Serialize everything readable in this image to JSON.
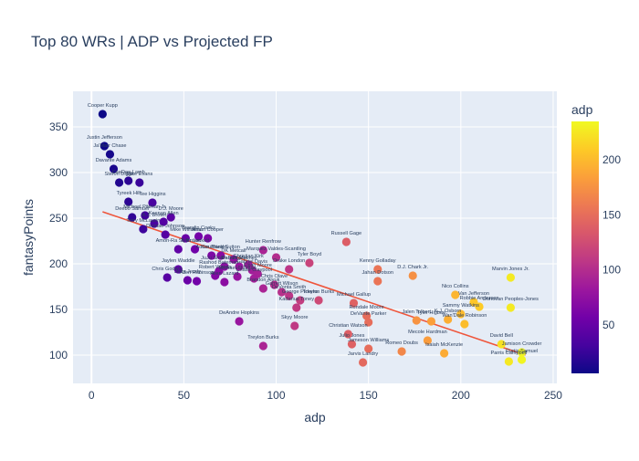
{
  "chart_data": {
    "type": "scatter",
    "title": "Top 80 WRs | ADP vs Projected FP",
    "xlabel": "adp",
    "ylabel": "fantasyPoints",
    "xlim": [
      -10,
      252
    ],
    "ylim": [
      69,
      389
    ],
    "xticks": [
      0,
      50,
      100,
      150,
      200,
      250
    ],
    "yticks": [
      100,
      150,
      200,
      250,
      300,
      350
    ],
    "grid": true,
    "colorbar": {
      "title": "adp",
      "min": 6,
      "max": 235,
      "ticks": [
        50,
        100,
        150,
        200
      ],
      "colorscale": [
        "#0d0887",
        "#46039f",
        "#7201a8",
        "#9c179e",
        "#bd3786",
        "#d8576b",
        "#ed7953",
        "#fb9f3a",
        "#fdca26",
        "#f0f921"
      ]
    },
    "trendline": {
      "color": "#ef553b",
      "x0": 6,
      "y0": 257,
      "x1": 235,
      "y1": 100
    },
    "points": [
      {
        "label": "Cooper Kupp",
        "x": 6,
        "y": 364
      },
      {
        "label": "Justin Jefferson",
        "x": 7,
        "y": 329
      },
      {
        "label": "Ja'Marr Chase",
        "x": 10,
        "y": 320
      },
      {
        "label": "Davante Adams",
        "x": 12,
        "y": 304
      },
      {
        "label": "Stefon Diggs",
        "x": 15,
        "y": 289
      },
      {
        "label": "CeeDee Lamb",
        "x": 20,
        "y": 291
      },
      {
        "label": "Mike Evans",
        "x": 26,
        "y": 289
      },
      {
        "label": "Tyreek Hill",
        "x": 20,
        "y": 268
      },
      {
        "label": "Tee Higgins",
        "x": 33,
        "y": 267
      },
      {
        "label": "Deebo Samuel",
        "x": 22,
        "y": 251
      },
      {
        "label": "Michael Pittman Jr.",
        "x": 29,
        "y": 253
      },
      {
        "label": "D.J. Moore",
        "x": 43,
        "y": 251
      },
      {
        "label": "Keenan Allen",
        "x": 39,
        "y": 246
      },
      {
        "label": "Terry McLaurin",
        "x": 28,
        "y": 238
      },
      {
        "label": "A.J. Brown",
        "x": 34,
        "y": 244
      },
      {
        "label": "Diontae Johnson",
        "x": 40,
        "y": 232
      },
      {
        "label": "Mike Williams",
        "x": 51,
        "y": 228
      },
      {
        "label": "Amari Cooper",
        "x": 63,
        "y": 228
      },
      {
        "label": "Brandin Cooks",
        "x": 58,
        "y": 230
      },
      {
        "label": "Hunter Renfrow",
        "x": 93,
        "y": 215
      },
      {
        "label": "Amon-Ra St. Brown",
        "x": 47,
        "y": 216
      },
      {
        "label": "Tyler Lockett",
        "x": 56,
        "y": 216
      },
      {
        "label": "Courtland Sutton",
        "x": 70,
        "y": 209
      },
      {
        "label": "Adam Thielen",
        "x": 65,
        "y": 209
      },
      {
        "label": "Marquez Valdes-Scantling",
        "x": 100,
        "y": 207
      },
      {
        "label": "DK Metcalf",
        "x": 77,
        "y": 205
      },
      {
        "label": "Tyler Boyd",
        "x": 118,
        "y": 201
      },
      {
        "label": "Christian Kirk",
        "x": 85,
        "y": 199
      },
      {
        "label": "Jaylen Waddle",
        "x": 47,
        "y": 194
      },
      {
        "label": "JuJu Smith-Schuster",
        "x": 72,
        "y": 197
      },
      {
        "label": "Darnell Mooney",
        "x": 80,
        "y": 197
      },
      {
        "label": "Gabriel Davis",
        "x": 87,
        "y": 193
      },
      {
        "label": "Elijah Moore",
        "x": 90,
        "y": 189
      },
      {
        "label": "Drake London",
        "x": 107,
        "y": 194
      },
      {
        "label": "Russell Gage",
        "x": 138,
        "y": 224
      },
      {
        "label": "Kenny Golladay",
        "x": 155,
        "y": 194
      },
      {
        "label": "D.J. Chark Jr.",
        "x": 174,
        "y": 187
      },
      {
        "label": "Jahan Dotson",
        "x": 155,
        "y": 181
      },
      {
        "label": "Chris Godwin",
        "x": 41,
        "y": 185
      },
      {
        "label": "Allen Robinson",
        "x": 57,
        "y": 181
      },
      {
        "label": "Jerry Jeudy",
        "x": 52,
        "y": 182
      },
      {
        "label": "Robert Woods",
        "x": 67,
        "y": 187
      },
      {
        "label": "Rashod Bateman",
        "x": 69,
        "y": 192
      },
      {
        "label": "Michael Thomas",
        "x": 79,
        "y": 186
      },
      {
        "label": "Chase Claypool",
        "x": 88,
        "y": 184
      },
      {
        "label": "Chris Olave",
        "x": 99,
        "y": 177
      },
      {
        "label": "Brandon Aiyuk",
        "x": 93,
        "y": 173
      },
      {
        "label": "Garrett Wilson",
        "x": 103,
        "y": 169
      },
      {
        "label": "DeVonta Smith",
        "x": 107,
        "y": 165
      },
      {
        "label": "George Pickens",
        "x": 113,
        "y": 160
      },
      {
        "label": "Kadarius Toney",
        "x": 111,
        "y": 152
      },
      {
        "label": "Treylon Burks",
        "x": 123,
        "y": 160
      },
      {
        "label": "Michael Gallup",
        "x": 142,
        "y": 157
      },
      {
        "label": "Rondale Moore",
        "x": 149,
        "y": 143
      },
      {
        "label": "DeVante Parker",
        "x": 150,
        "y": 136
      },
      {
        "label": "Jalen Tolbert",
        "x": 176,
        "y": 138
      },
      {
        "label": "Nico Collins",
        "x": 197,
        "y": 166
      },
      {
        "label": "Van Jefferson",
        "x": 207,
        "y": 158
      },
      {
        "label": "Robbie Anderson",
        "x": 210,
        "y": 153
      },
      {
        "label": "Donovan Peoples-Jones",
        "x": 227,
        "y": 152
      },
      {
        "label": "Marvin Jones Jr.",
        "x": 227,
        "y": 185
      },
      {
        "label": "Sammy Watkins",
        "x": 200,
        "y": 145
      },
      {
        "label": "Tyler Higbee",
        "x": 184,
        "y": 137
      },
      {
        "label": "K.J. Osborn",
        "x": 193,
        "y": 139
      },
      {
        "label": "Wan'Dale Robinson",
        "x": 202,
        "y": 134
      },
      {
        "label": "DeAndre Hopkins",
        "x": 80,
        "y": 137
      },
      {
        "label": "Skyy Moore",
        "x": 110,
        "y": 132
      },
      {
        "label": "Christian Watson",
        "x": 139,
        "y": 123
      },
      {
        "label": "Treylon Burks",
        "x": 93,
        "y": 110
      },
      {
        "label": "Julio Jones",
        "x": 141,
        "y": 112
      },
      {
        "label": "Jameson Williams",
        "x": 150,
        "y": 107
      },
      {
        "label": "Mecole Hardman",
        "x": 182,
        "y": 116
      },
      {
        "label": "Romeo Doubs",
        "x": 168,
        "y": 104
      },
      {
        "label": "Isaiah McKenzie",
        "x": 191,
        "y": 102
      },
      {
        "label": "Jarvis Landry",
        "x": 147,
        "y": 92
      },
      {
        "label": "David Bell",
        "x": 222,
        "y": 112
      },
      {
        "label": "Jamison Crowder",
        "x": 233,
        "y": 103
      },
      {
        "label": "Curtis Samuel",
        "x": 233,
        "y": 95
      },
      {
        "label": "Parris Campbell",
        "x": 226,
        "y": 93
      },
      {
        "label": "Allen Lazard",
        "x": 72,
        "y": 180
      }
    ]
  }
}
